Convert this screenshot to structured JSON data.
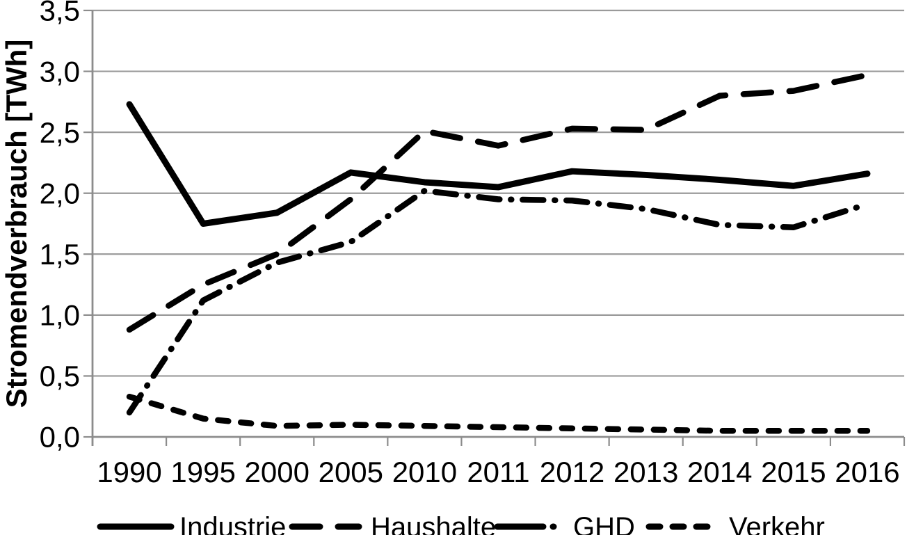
{
  "figure": {
    "background": "#ffffff",
    "colors": {
      "line": "#000000",
      "grid": "#9a9a9a",
      "axis": "#8c8c8c",
      "text": "#000000"
    }
  },
  "chart_data": {
    "type": "line",
    "title": "",
    "xlabel": "",
    "ylabel": "Stromendverbrauch [TWh]",
    "ylim": [
      0,
      3.5
    ],
    "ytick_step": 0.5,
    "ytick_labels": [
      "0,0",
      "0,5",
      "1,0",
      "1,5",
      "2,0",
      "2,5",
      "3,0",
      "3,5"
    ],
    "categories": [
      "1990",
      "1995",
      "2000",
      "2005",
      "2010",
      "2011",
      "2012",
      "2013",
      "2014",
      "2015",
      "2016"
    ],
    "grid": "horizontal gridlines every 0.5 TWh",
    "legend_position": "bottom",
    "series": [
      {
        "name": "Industrie",
        "style": "solid",
        "values": [
          2.73,
          1.75,
          1.84,
          2.17,
          2.09,
          2.05,
          2.18,
          2.15,
          2.11,
          2.06,
          2.16
        ]
      },
      {
        "name": "Haushalte",
        "style": "long-dash",
        "values": [
          0.88,
          1.25,
          1.5,
          1.95,
          2.51,
          2.39,
          2.53,
          2.52,
          2.8,
          2.84,
          2.97
        ]
      },
      {
        "name": "GHD",
        "style": "dash-dot",
        "values": [
          0.2,
          1.12,
          1.43,
          1.6,
          2.02,
          1.95,
          1.94,
          1.87,
          1.74,
          1.72,
          1.91
        ]
      },
      {
        "name": "Verkehr",
        "style": "short-dash",
        "values": [
          0.33,
          0.15,
          0.09,
          0.1,
          0.09,
          0.08,
          0.07,
          0.06,
          0.05,
          0.05,
          0.05
        ]
      }
    ]
  }
}
